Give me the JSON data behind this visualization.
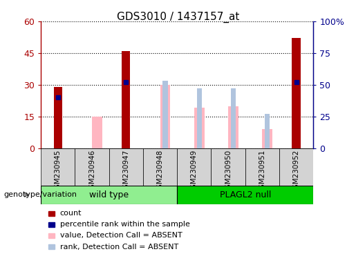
{
  "title": "GDS3010 / 1437157_at",
  "samples": [
    "GSM230945",
    "GSM230946",
    "GSM230947",
    "GSM230948",
    "GSM230949",
    "GSM230950",
    "GSM230951",
    "GSM230952"
  ],
  "group_label": "genotype/variation",
  "group1_label": "wild type",
  "group2_label": "PLAGL2 null",
  "group1_range": [
    0,
    4
  ],
  "group2_range": [
    4,
    8
  ],
  "count": [
    29,
    0,
    46,
    0,
    0,
    0,
    0,
    52
  ],
  "percentile_rank": [
    40,
    0,
    52,
    0,
    0,
    0,
    0,
    52
  ],
  "value_absent": [
    0,
    25,
    0,
    50,
    32,
    33,
    15,
    0
  ],
  "rank_absent": [
    0,
    0,
    0,
    53,
    47,
    47,
    27,
    0
  ],
  "ylim_left": [
    0,
    60
  ],
  "ylim_right": [
    0,
    100
  ],
  "yticks_left": [
    0,
    15,
    30,
    45,
    60
  ],
  "ytick_labels_left": [
    "0",
    "15",
    "30",
    "45",
    "60"
  ],
  "yticks_right": [
    0,
    25,
    50,
    75,
    100
  ],
  "ytick_labels_right": [
    "0",
    "25",
    "50",
    "75",
    "100%"
  ],
  "color_count": "#AA0000",
  "color_percentile": "#00008B",
  "color_value_absent": "#FFB6C1",
  "color_rank_absent": "#B0C4DE",
  "bg_plot": "#FFFFFF",
  "bg_sample_box": "#D3D3D3",
  "bg_group_wildtype": "#90EE90",
  "bg_group_plagl2": "#00CC00",
  "legend_items": [
    {
      "label": "count",
      "color": "#AA0000"
    },
    {
      "label": "percentile rank within the sample",
      "color": "#00008B"
    },
    {
      "label": "value, Detection Call = ABSENT",
      "color": "#FFB6C1"
    },
    {
      "label": "rank, Detection Call = ABSENT",
      "color": "#B0C4DE"
    }
  ]
}
